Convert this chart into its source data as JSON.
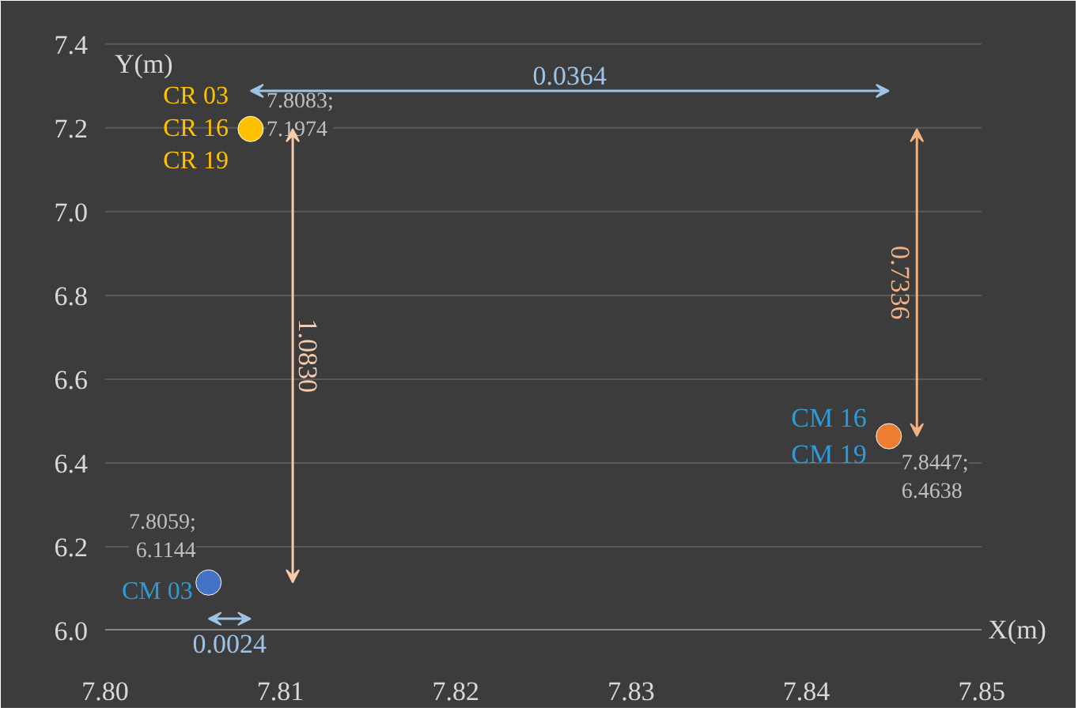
{
  "chart_data": {
    "type": "scatter",
    "xlabel": "X(m)",
    "ylabel": "Y(m)",
    "xlim": [
      7.8,
      7.85
    ],
    "xticks": [
      {
        "value": 7.8,
        "label": "7.80"
      },
      {
        "value": 7.81,
        "label": "7.81"
      },
      {
        "value": 7.82,
        "label": "7.82"
      },
      {
        "value": 7.83,
        "label": "7.83"
      },
      {
        "value": 7.84,
        "label": "7.84"
      },
      {
        "value": 7.85,
        "label": "7.85"
      }
    ],
    "ylim": [
      6.0,
      7.4
    ],
    "yticks": [
      {
        "value": 6.0,
        "label": "6.0"
      },
      {
        "value": 6.2,
        "label": "6.2"
      },
      {
        "value": 6.4,
        "label": "6.4"
      },
      {
        "value": 6.6,
        "label": "6.6"
      },
      {
        "value": 6.8,
        "label": "6.8"
      },
      {
        "value": 7.0,
        "label": "7.0"
      },
      {
        "value": 7.2,
        "label": "7.2"
      },
      {
        "value": 7.4,
        "label": "7.4"
      }
    ],
    "grid": "y",
    "marker": "circle",
    "series": [
      {
        "color": "#4472c4",
        "x": [
          7.8059
        ],
        "values": [
          6.1144
        ]
      },
      {
        "color": "#ffc000",
        "x": [
          7.8083
        ],
        "values": [
          7.1974
        ]
      },
      {
        "color": "#ed7d31",
        "x": [
          7.8447
        ],
        "values": [
          6.4638
        ]
      }
    ],
    "annotations": [
      {
        "text": "CM 03",
        "x": 7.8059,
        "y": 6.1144
      },
      {
        "text": "CR 03\nCR 16\nCR 19",
        "x": 7.8083,
        "y": 7.1974
      },
      {
        "text": "CM 16\nCM 19",
        "x": 7.8447,
        "y": 6.4638
      },
      {
        "text": "7.8059;\n6.1144",
        "x": 7.8059,
        "y": 6.1144
      },
      {
        "text": "7.8083;\n7.1974",
        "x": 7.8083,
        "y": 7.1974
      },
      {
        "text": "7.8447;\n6.4638",
        "x": 7.8447,
        "y": 6.4638
      },
      "0.0364",
      "1.0830",
      "0.7336",
      "0.0024"
    ]
  }
}
